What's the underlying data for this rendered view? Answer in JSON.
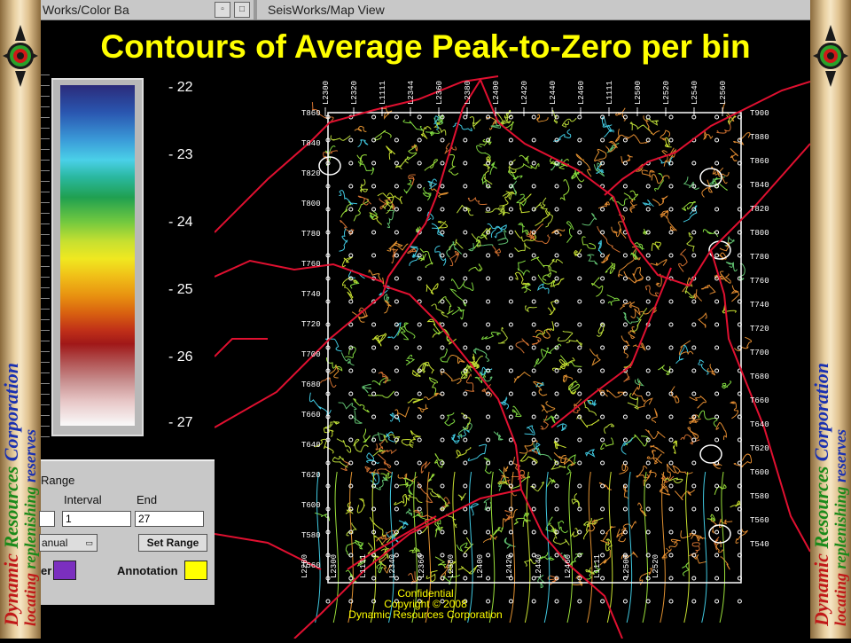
{
  "window": {
    "left_title": "Works/Color Ba",
    "right_title": "SeisWorks/Map View"
  },
  "slide_title": "Contours of Average Peak-to-Zero per bin",
  "side_text": {
    "line1": "Dynamic Resources Corporation",
    "line2": "locating replenishing reserves"
  },
  "colorbar": {
    "labels": [
      "- 22",
      "- 23",
      "- 24",
      "- 25",
      "- 26",
      "- 27"
    ]
  },
  "range_panel": {
    "section_label": "Range",
    "interval_label": "Interval",
    "end_label": "End",
    "start_value": "",
    "interval_value": "1",
    "end_value": "27",
    "mode_value": "anual",
    "set_range_label": "Set Range",
    "left_swatch_label": "er",
    "annotation_label": "Annotation",
    "left_swatch_color": "#7b2fbf",
    "annotation_color": "#ffff00"
  },
  "map": {
    "top_line_labels": [
      "L2300",
      "L2320",
      "L1111",
      "L2344",
      "L2360",
      "L2380",
      "L2400",
      "L2420",
      "L2440",
      "L2460",
      "L1111",
      "L2500",
      "L2520",
      "L2540",
      "L2560"
    ],
    "bottom_line_labels": [
      "L2280",
      "L2300",
      "L1111",
      "L2340",
      "L2360",
      "L2380",
      "L2400",
      "L2420",
      "L2440",
      "L2460",
      "L1111",
      "L2500",
      "L2520"
    ],
    "left_labels": [
      "T860",
      "T840",
      "T820",
      "T800",
      "T780",
      "T760",
      "T740",
      "T720",
      "T700",
      "T680",
      "T660",
      "T640",
      "T620",
      "T600",
      "T580",
      "T560"
    ],
    "right_labels": [
      "T900",
      "T880",
      "T860",
      "T840",
      "T820",
      "T800",
      "T780",
      "T760",
      "T740",
      "T720",
      "T700",
      "T680",
      "T660",
      "T640",
      "T620",
      "T600",
      "T580",
      "T560",
      "T540"
    ]
  },
  "footer": {
    "line1": "Confidential",
    "line2": "Copyright © 2008",
    "line3": "Dynamic Resources Corporation"
  }
}
